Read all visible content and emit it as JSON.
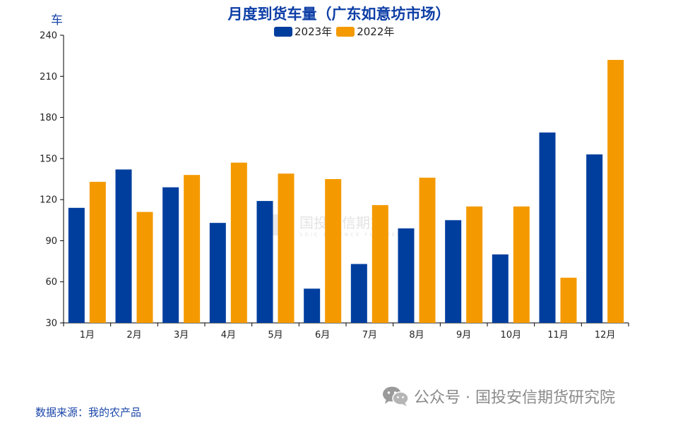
{
  "chart_data": {
    "type": "bar",
    "title": "月度到货车量（广东如意坊市场）",
    "ylabel": "车",
    "xlabel": "",
    "categories": [
      "1月",
      "2月",
      "3月",
      "4月",
      "5月",
      "6月",
      "7月",
      "8月",
      "9月",
      "10月",
      "11月",
      "12月"
    ],
    "series": [
      {
        "name": "2023年",
        "color": "#003e9e",
        "values": [
          114,
          142,
          129,
          103,
          119,
          55,
          73,
          99,
          105,
          80,
          169,
          153
        ]
      },
      {
        "name": "2022年",
        "color": "#f49a00",
        "values": [
          133,
          111,
          138,
          147,
          139,
          135,
          116,
          136,
          115,
          115,
          63,
          222
        ]
      }
    ],
    "ylim": [
      30,
      240
    ],
    "yticks": [
      30,
      60,
      90,
      120,
      150,
      180,
      210,
      240
    ],
    "grid": false,
    "legend": "top-center"
  },
  "source": "数据来源：我的农产品",
  "wechat_account": "公众号 · 国投安信期货研究院",
  "watermark": {
    "main": "国投安信期货",
    "sub": "SDIC ESSENCE FUTURES"
  }
}
